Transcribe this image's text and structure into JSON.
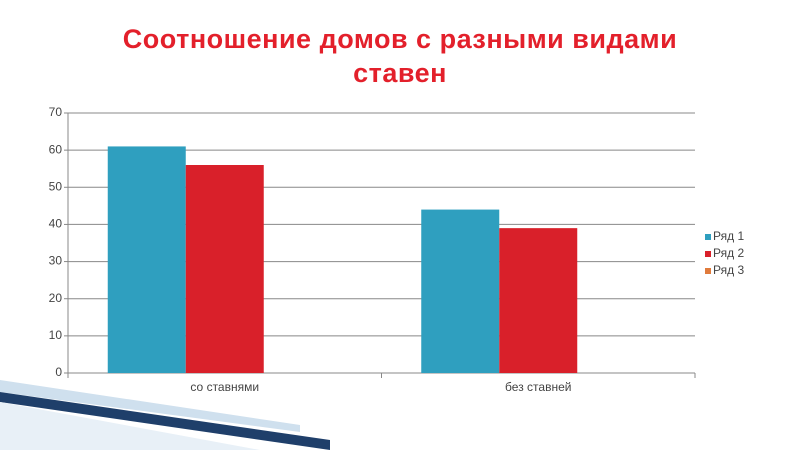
{
  "chart_data": {
    "type": "bar",
    "title": "Соотношение домов с разными видами ставен",
    "categories": [
      "со ставнями",
      "без ставней"
    ],
    "series": [
      {
        "name": "Ряд 1",
        "color": "#2f9fbf",
        "values": [
          61,
          44
        ]
      },
      {
        "name": "Ряд 2",
        "color": "#d9202a",
        "values": [
          56,
          39
        ]
      },
      {
        "name": "Ряд 3",
        "color": "#e07b3c",
        "values": [
          null,
          null
        ]
      }
    ],
    "ylim": [
      0,
      70
    ],
    "yticks": [
      0,
      10,
      20,
      30,
      40,
      50,
      60,
      70
    ],
    "grid": true,
    "legend": "right"
  }
}
